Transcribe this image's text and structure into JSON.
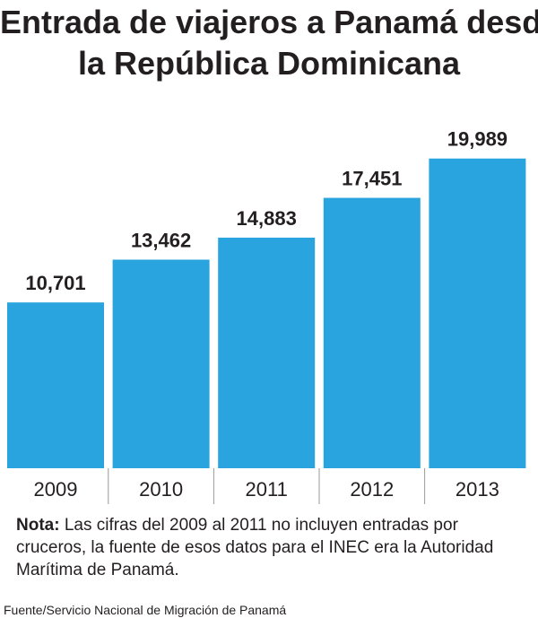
{
  "header": {
    "title_line1": "Entrada de viajeros a Panamá desde",
    "title_line2": "la República Dominicana"
  },
  "chart_data": {
    "type": "bar",
    "title": "Entrada de viajeros a Panamá desde la República Dominicana",
    "categories": [
      "2009",
      "2010",
      "2011",
      "2012",
      "2013"
    ],
    "values": [
      10701,
      13462,
      14883,
      17451,
      19989
    ],
    "value_labels": [
      "10,701",
      "13,462",
      "14,883",
      "17,451",
      "19,989"
    ],
    "xlabel": "",
    "ylabel": "",
    "ylim": [
      0,
      22000
    ],
    "grid": false,
    "bar_color": "#29a4de"
  },
  "note": {
    "label": "Nota:",
    "text": " Las cifras del 2009 al 2011 no incluyen entradas por cruceros, la fuente de esos datos para el INEC era la Autoridad Marítima de Panamá."
  },
  "source": "Fuente/Servicio Nacional de Migración de Panamá"
}
